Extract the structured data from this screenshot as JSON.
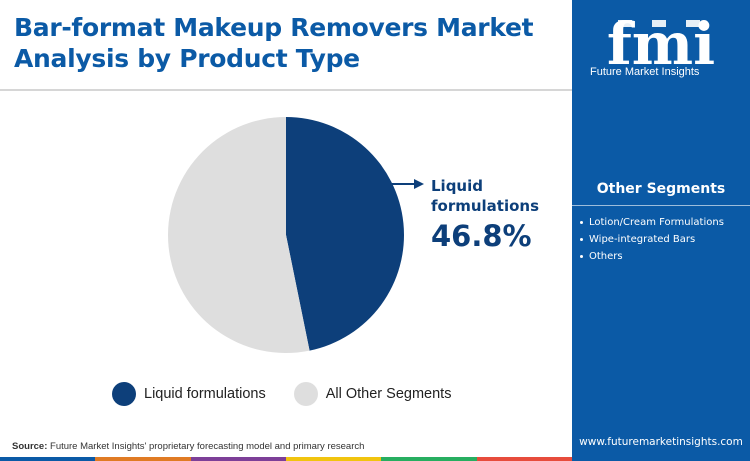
{
  "title": {
    "line1": "Bar-format Makeup Removers Market",
    "line2": "Analysis by Product Type"
  },
  "brand": {
    "logo_text": "fmi",
    "name": "Future Market Insights",
    "website": "www.futuremarketinsights.com",
    "color": "#0b5aa6"
  },
  "other_segments": {
    "heading": "Other Segments",
    "items": [
      "Lotion/Cream Formulations",
      "Wipe-integrated Bars",
      "Others"
    ]
  },
  "callout": {
    "label_line1": "Liquid",
    "label_line2": "formulations",
    "value": "46.8%"
  },
  "source": {
    "label": "Source:",
    "text": " Future Market Insights' proprietary forecasting model and primary research"
  },
  "footer_colors": [
    "#0b5aa6",
    "#e07b24",
    "#7d3f98",
    "#f1c40f",
    "#27ae60",
    "#e74c3c"
  ],
  "chart_data": {
    "type": "pie",
    "title": "Bar-format Makeup Removers Market Analysis by Product Type",
    "labels": [
      "Liquid formulations",
      "All Other Segments"
    ],
    "values": [
      46.8,
      53.2
    ],
    "colors": [
      "#0d3f7a",
      "#dedede"
    ],
    "unit": "%",
    "legend": "bottom",
    "start_angle_deg": 0
  }
}
